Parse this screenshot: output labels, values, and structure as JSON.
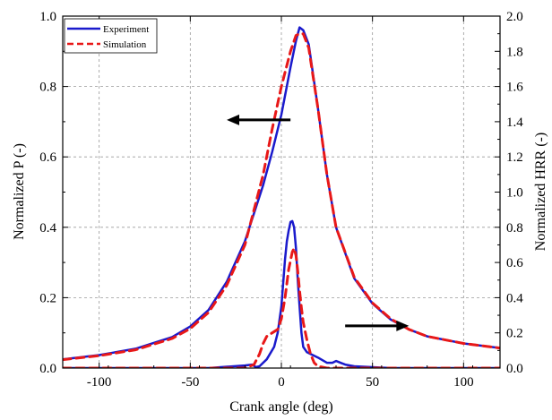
{
  "chart_data": {
    "type": "line",
    "xlabel": "Crank angle (deg)",
    "ylabel_left": "Normalized P (-)",
    "ylabel_right": "Normalized HRR (-)",
    "xlim": [
      -120,
      120
    ],
    "ylim_left": [
      0,
      1.0
    ],
    "ylim_right": [
      0,
      2.0
    ],
    "x_ticks": [
      -100,
      -50,
      0,
      50,
      100
    ],
    "y_left_ticks": [
      0.0,
      0.2,
      0.4,
      0.6,
      0.8,
      1.0
    ],
    "y_right_ticks": [
      0.0,
      0.2,
      0.4,
      0.6,
      0.8,
      1.0,
      1.2,
      1.4,
      1.6,
      1.8,
      2.0
    ],
    "grid": true,
    "legend_position": "top-left",
    "series": [
      {
        "name": "Experiment",
        "axis": "left",
        "style": "solid",
        "color": "#1a1acc",
        "x": [
          -120,
          -100,
          -80,
          -60,
          -50,
          -40,
          -30,
          -20,
          -10,
          -5,
          0,
          5,
          8,
          10,
          12,
          15,
          20,
          25,
          30,
          40,
          50,
          60,
          70,
          80,
          100,
          120
        ],
        "y": [
          0.025,
          0.037,
          0.055,
          0.088,
          0.118,
          0.165,
          0.245,
          0.36,
          0.52,
          0.615,
          0.72,
          0.855,
          0.93,
          0.968,
          0.96,
          0.92,
          0.74,
          0.55,
          0.4,
          0.255,
          0.183,
          0.138,
          0.11,
          0.09,
          0.07,
          0.057
        ]
      },
      {
        "name": "Simulation",
        "axis": "left",
        "style": "dashed",
        "color": "#e81818",
        "x": [
          -120,
          -100,
          -80,
          -60,
          -50,
          -40,
          -30,
          -20,
          -10,
          -5,
          0,
          5,
          8,
          10,
          12,
          15,
          20,
          25,
          30,
          40,
          50,
          60,
          70,
          80,
          100,
          120
        ],
        "y": [
          0.024,
          0.035,
          0.052,
          0.084,
          0.112,
          0.158,
          0.235,
          0.35,
          0.55,
          0.68,
          0.8,
          0.9,
          0.945,
          0.95,
          0.95,
          0.91,
          0.74,
          0.55,
          0.4,
          0.258,
          0.185,
          0.14,
          0.11,
          0.09,
          0.07,
          0.057
        ]
      },
      {
        "name": "Experiment",
        "axis": "right",
        "style": "solid",
        "color": "#1a1acc",
        "x": [
          -120,
          -40,
          -20,
          -16,
          -14,
          -12,
          -8,
          -4,
          -2,
          0,
          2,
          3,
          4,
          5,
          6,
          7,
          8,
          9,
          10,
          11,
          12,
          14,
          16,
          20,
          25,
          28,
          30,
          35,
          40,
          60,
          120
        ],
        "y": [
          0.0,
          0.0,
          0.015,
          0.02,
          0.005,
          0.01,
          0.05,
          0.12,
          0.2,
          0.35,
          0.62,
          0.72,
          0.78,
          0.83,
          0.835,
          0.8,
          0.68,
          0.5,
          0.35,
          0.2,
          0.12,
          0.09,
          0.08,
          0.06,
          0.03,
          0.03,
          0.04,
          0.02,
          0.01,
          0.0,
          0.0
        ]
      },
      {
        "name": "Simulation",
        "axis": "right",
        "style": "dashed",
        "color": "#e81818",
        "x": [
          -120,
          -20,
          -15,
          -12,
          -10,
          -8,
          -5,
          -2,
          0,
          2,
          4,
          6,
          7,
          8,
          9,
          10,
          11,
          12,
          14,
          16,
          18,
          20,
          25,
          120
        ],
        "y": [
          0.0,
          0.0,
          0.02,
          0.08,
          0.14,
          0.18,
          0.2,
          0.22,
          0.28,
          0.4,
          0.56,
          0.66,
          0.68,
          0.64,
          0.55,
          0.44,
          0.34,
          0.26,
          0.16,
          0.08,
          0.03,
          0.01,
          0.0,
          0.0
        ]
      }
    ],
    "annotations": [
      {
        "type": "arrow",
        "direction": "left",
        "meaning": "curve uses left axis",
        "from": [
          5,
          0.705
        ],
        "to": [
          -30,
          0.705
        ]
      },
      {
        "type": "arrow",
        "direction": "right",
        "meaning": "curve uses right axis",
        "from": [
          35,
          0.12
        ],
        "to": [
          70,
          0.12
        ]
      }
    ]
  }
}
